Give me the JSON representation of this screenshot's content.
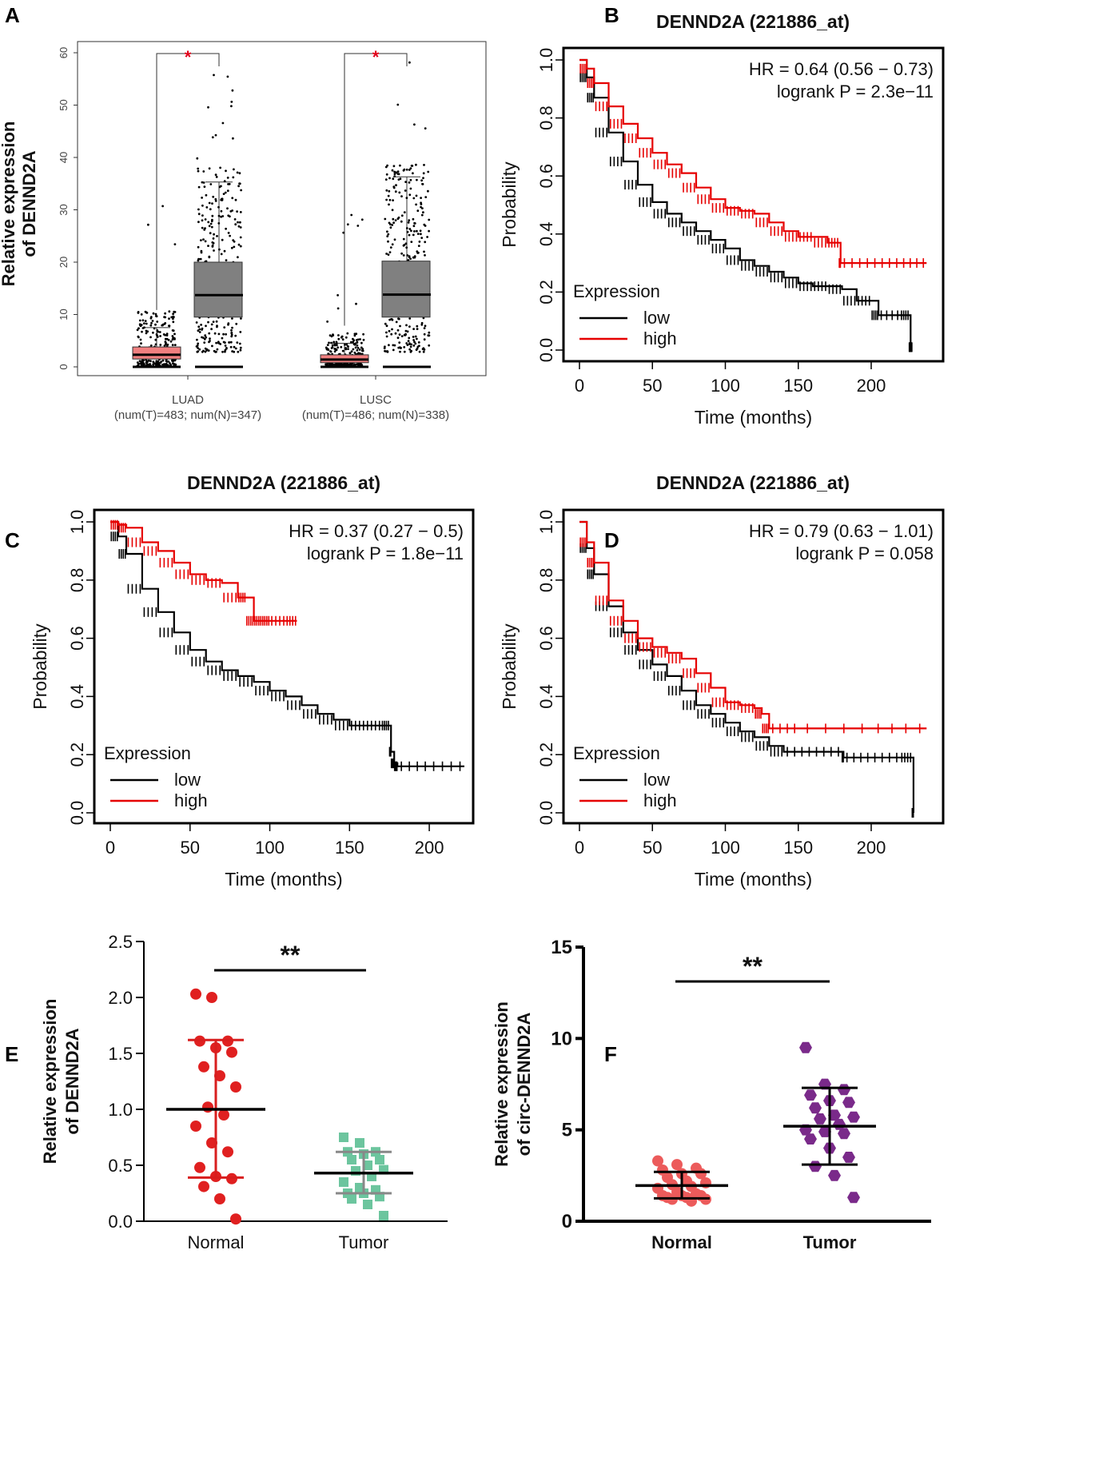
{
  "panels": {
    "A": "A",
    "B": "B",
    "C": "C",
    "D": "D",
    "E": "E",
    "F": "F"
  },
  "chart_data": [
    {
      "id": "A",
      "type": "box",
      "ylabel_line1": "Relative expression",
      "ylabel_line2": "of DENND2A",
      "ylim": [
        0,
        60
      ],
      "yticks": [
        "0",
        "10",
        "20",
        "30",
        "40",
        "50",
        "60"
      ],
      "groups": [
        {
          "name": "LUAD",
          "sub": "(num(T)=483; num(N)=347)",
          "tumor": {
            "q1": 1.5,
            "median": 2.3,
            "q3": 3.8,
            "whisker_low": 0,
            "whisker_high": 7.5
          },
          "normal": {
            "q1": 9.5,
            "median": 13.7,
            "q3": 20.0,
            "whisker_low": 0,
            "whisker_high": 35.3
          },
          "sig": "*"
        },
        {
          "name": "LUSC",
          "sub": "(num(T)=486; num(N)=338)",
          "tumor": {
            "q1": 0.8,
            "median": 1.4,
            "q3": 2.3,
            "whisker_low": 0,
            "whisker_high": 4.5
          },
          "normal": {
            "q1": 9.5,
            "median": 13.8,
            "q3": 20.2,
            "whisker_low": 0,
            "whisker_high": 36.3
          },
          "sig": "*"
        }
      ],
      "colors": {
        "tumor": "#f08080",
        "normal": "#808080",
        "sig": "#e0001a"
      }
    },
    {
      "id": "B",
      "type": "line",
      "title": "DENND2A (221886_at)",
      "hr": "HR = 0.64 (0.56 − 0.73)",
      "pval": "logrank P = 2.3e−11",
      "xlabel": "Time (months)",
      "ylabel": "Probability",
      "xlim": [
        0,
        240
      ],
      "ylim": [
        0,
        1
      ],
      "xticks": [
        "0",
        "50",
        "100",
        "150",
        "200"
      ],
      "yticks": [
        "0.0",
        "0.2",
        "0.4",
        "0.6",
        "0.8",
        "1.0"
      ],
      "legend_title": "Expression",
      "legend_low": "low",
      "legend_high": "high",
      "series": [
        {
          "name": "low",
          "color": "#000000",
          "x": [
            0,
            5,
            10,
            20,
            30,
            40,
            50,
            60,
            70,
            80,
            90,
            100,
            110,
            120,
            130,
            140,
            150,
            160,
            170,
            180,
            190,
            200,
            205,
            220,
            226,
            227,
            228
          ],
          "y": [
            1.0,
            0.94,
            0.87,
            0.75,
            0.65,
            0.57,
            0.51,
            0.47,
            0.44,
            0.41,
            0.38,
            0.35,
            0.31,
            0.29,
            0.27,
            0.25,
            0.23,
            0.22,
            0.22,
            0.21,
            0.17,
            0.17,
            0.12,
            0.12,
            0.12,
            0.01,
            0.01
          ]
        },
        {
          "name": "high",
          "color": "#e60000",
          "x": [
            0,
            5,
            10,
            20,
            30,
            40,
            50,
            60,
            70,
            80,
            90,
            100,
            110,
            120,
            130,
            140,
            150,
            160,
            170,
            178,
            179,
            200,
            220,
            238
          ],
          "y": [
            1.0,
            0.97,
            0.92,
            0.84,
            0.78,
            0.73,
            0.68,
            0.64,
            0.61,
            0.56,
            0.52,
            0.49,
            0.48,
            0.47,
            0.44,
            0.41,
            0.39,
            0.39,
            0.37,
            0.37,
            0.3,
            0.3,
            0.3,
            0.3
          ]
        }
      ]
    },
    {
      "id": "C",
      "type": "line",
      "title": "DENND2A (221886_at)",
      "hr": "HR = 0.37 (0.27 − 0.5)",
      "pval": "logrank P = 1.8e−11",
      "xlabel": "Time (months)",
      "ylabel": "Probability",
      "xlim": [
        0,
        220
      ],
      "ylim": [
        0,
        1
      ],
      "xticks": [
        "0",
        "50",
        "100",
        "150",
        "200"
      ],
      "yticks": [
        "0.0",
        "0.2",
        "0.4",
        "0.6",
        "0.8",
        "1.0"
      ],
      "legend_title": "Expression",
      "legend_low": "low",
      "legend_high": "high",
      "series": [
        {
          "name": "low",
          "color": "#000000",
          "x": [
            0,
            5,
            10,
            20,
            30,
            40,
            50,
            60,
            70,
            80,
            90,
            100,
            110,
            120,
            130,
            140,
            150,
            160,
            170,
            175,
            176,
            178,
            180,
            200,
            222
          ],
          "y": [
            1.0,
            0.95,
            0.89,
            0.77,
            0.69,
            0.62,
            0.56,
            0.52,
            0.49,
            0.47,
            0.45,
            0.42,
            0.4,
            0.37,
            0.34,
            0.32,
            0.3,
            0.3,
            0.3,
            0.3,
            0.21,
            0.17,
            0.16,
            0.16,
            0.16
          ]
        },
        {
          "name": "high",
          "color": "#e60000",
          "x": [
            0,
            5,
            10,
            20,
            30,
            40,
            50,
            60,
            70,
            80,
            85,
            90,
            95,
            100,
            110,
            117
          ],
          "y": [
            1.0,
            0.99,
            0.98,
            0.93,
            0.9,
            0.86,
            0.82,
            0.8,
            0.79,
            0.74,
            0.74,
            0.66,
            0.66,
            0.66,
            0.66,
            0.66
          ]
        }
      ]
    },
    {
      "id": "D",
      "type": "line",
      "title": "DENND2A (221886_at)",
      "hr": "HR = 0.79 (0.63 − 1.01)",
      "pval": "logrank P = 0.058",
      "xlabel": "Time (months)",
      "ylabel": "Probability",
      "xlim": [
        0,
        240
      ],
      "ylim": [
        0,
        1
      ],
      "xticks": [
        "0",
        "50",
        "100",
        "150",
        "200"
      ],
      "yticks": [
        "0.0",
        "0.2",
        "0.4",
        "0.6",
        "0.8",
        "1.0"
      ],
      "legend_title": "Expression",
      "legend_low": "low",
      "legend_high": "high",
      "series": [
        {
          "name": "low",
          "color": "#000000",
          "x": [
            0,
            5,
            10,
            20,
            30,
            40,
            50,
            60,
            70,
            80,
            90,
            100,
            110,
            120,
            130,
            140,
            160,
            180,
            181,
            200,
            220,
            228,
            229
          ],
          "y": [
            1.0,
            0.91,
            0.82,
            0.71,
            0.62,
            0.56,
            0.51,
            0.47,
            0.42,
            0.37,
            0.34,
            0.31,
            0.28,
            0.26,
            0.23,
            0.21,
            0.21,
            0.21,
            0.19,
            0.19,
            0.19,
            0.19,
            0.0
          ]
        },
        {
          "name": "high",
          "color": "#e60000",
          "x": [
            0,
            5,
            10,
            20,
            30,
            40,
            50,
            60,
            70,
            80,
            90,
            100,
            110,
            120,
            125,
            130,
            150,
            200,
            238
          ],
          "y": [
            1.0,
            0.93,
            0.86,
            0.73,
            0.66,
            0.6,
            0.57,
            0.55,
            0.53,
            0.48,
            0.43,
            0.38,
            0.37,
            0.36,
            0.34,
            0.29,
            0.29,
            0.29,
            0.29
          ]
        }
      ]
    },
    {
      "id": "E",
      "type": "scatter",
      "ylabel_line1": "Relative expression",
      "ylabel_line2": "of DENND2A",
      "ylim": [
        0,
        2.5
      ],
      "yticks": [
        "0.0",
        "0.5",
        "1.0",
        "1.5",
        "2.0",
        "2.5"
      ],
      "categories": [
        "Normal",
        "Tumor"
      ],
      "sig": "**",
      "normal": {
        "color": "#e02020",
        "mean": 1.0,
        "sd_low": 0.39,
        "sd_high": 1.62,
        "values": [
          2.03,
          2.0,
          1.61,
          1.61,
          1.55,
          1.51,
          1.38,
          1.3,
          1.2,
          1.02,
          0.95,
          0.85,
          0.7,
          0.62,
          0.48,
          0.4,
          0.38,
          0.31,
          0.2,
          0.02
        ]
      },
      "tumor": {
        "color": "#6cc59e",
        "mean": 0.43,
        "sd_low": 0.25,
        "sd_high": 0.62,
        "values": [
          0.75,
          0.7,
          0.62,
          0.62,
          0.6,
          0.55,
          0.55,
          0.5,
          0.46,
          0.45,
          0.4,
          0.35,
          0.3,
          0.28,
          0.25,
          0.25,
          0.22,
          0.2,
          0.15,
          0.05
        ]
      }
    },
    {
      "id": "F",
      "type": "scatter",
      "ylabel_line1": "Relative expression",
      "ylabel_line2": "of circ-DENND2A",
      "ylim": [
        0,
        15
      ],
      "yticks": [
        "0",
        "5",
        "10",
        "15"
      ],
      "categories": [
        "Normal",
        "Tumor"
      ],
      "sig": "**",
      "normal": {
        "color": "#ec5b5b",
        "mean": 1.95,
        "sd_low": 1.25,
        "sd_high": 2.7,
        "values": [
          3.3,
          3.1,
          2.9,
          2.8,
          2.6,
          2.6,
          2.4,
          2.2,
          2.1,
          2.0,
          1.9,
          1.8,
          1.6,
          1.5,
          1.4,
          1.4,
          1.4,
          1.3,
          1.3,
          1.2,
          1.2,
          1.1
        ]
      },
      "tumor": {
        "color": "#7a2a8a",
        "mean": 5.2,
        "sd_low": 3.1,
        "sd_high": 7.3,
        "values": [
          9.5,
          7.5,
          7.2,
          6.9,
          6.6,
          6.5,
          6.2,
          5.8,
          5.7,
          5.6,
          5.3,
          5.0,
          4.9,
          4.8,
          4.5,
          4.0,
          3.5,
          3.0,
          2.5,
          1.3
        ]
      }
    }
  ]
}
